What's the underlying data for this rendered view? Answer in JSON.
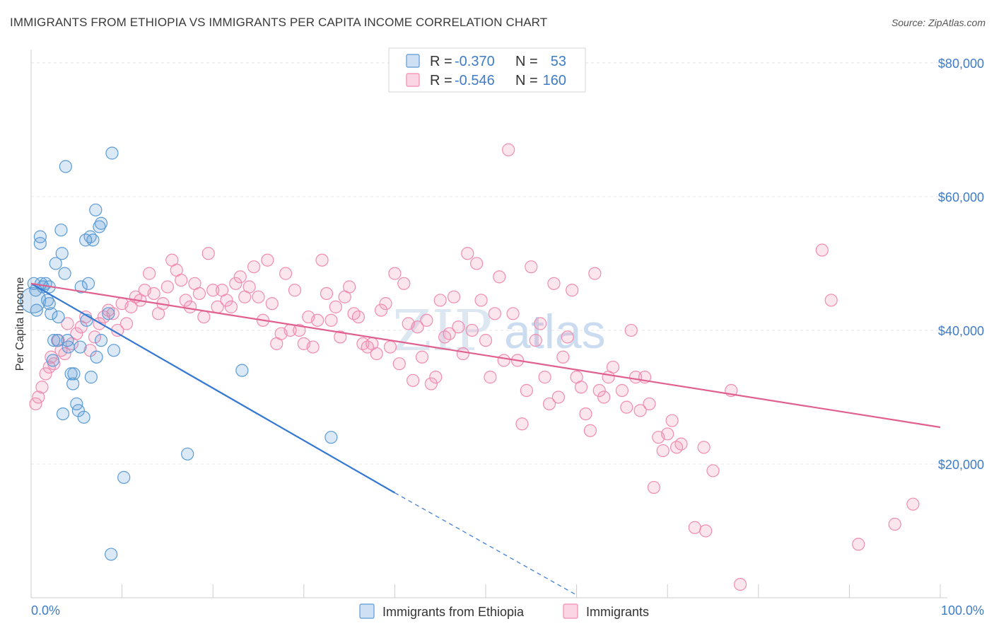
{
  "title": "IMMIGRANTS FROM ETHIOPIA VS IMMIGRANTS PER CAPITA INCOME CORRELATION CHART",
  "source": "Source: ZipAtlas.com",
  "watermark": {
    "part1": "ZIP",
    "part2": "atlas"
  },
  "legend": {
    "rows": [
      {
        "r_label": "R = ",
        "r_value": "-0.370",
        "n_label": "N = ",
        "n_value": "53",
        "color": "#5b9bd5"
      },
      {
        "r_label": "R = ",
        "r_value": "-0.546",
        "n_label": "N = ",
        "n_value": "160",
        "color": "#f08cb0"
      }
    ]
  },
  "bottom_legend": [
    {
      "label": "Immigrants from Ethiopia",
      "color": "#5b9bd5"
    },
    {
      "label": "Immigrants",
      "color": "#f08cb0"
    }
  ],
  "chart_data": {
    "type": "scatter",
    "title": "IMMIGRANTS FROM ETHIOPIA VS IMMIGRANTS PER CAPITA INCOME CORRELATION CHART",
    "xlabel": "",
    "ylabel": "Per Capita Income",
    "xlim": [
      0,
      100
    ],
    "ylim": [
      0,
      82000
    ],
    "x_tick_labels": [
      "0.0%",
      "100.0%"
    ],
    "y_ticks": [
      20000,
      40000,
      60000,
      80000
    ],
    "y_tick_labels": [
      "$20,000",
      "$40,000",
      "$60,000",
      "$80,000"
    ],
    "grid": true,
    "legend_position": "top-center",
    "series": [
      {
        "name": "Immigrants from Ethiopia",
        "color": "#5b9bd5",
        "trend": {
          "x": [
            0,
            40
          ],
          "y": [
            47000,
            15700
          ],
          "dashed_to": [
            60,
            400
          ]
        },
        "points": [
          [
            0.3,
            47000
          ],
          [
            0.5,
            46000
          ],
          [
            0.6,
            43000
          ],
          [
            1.0,
            54000
          ],
          [
            1.0,
            53000
          ],
          [
            1.1,
            47000
          ],
          [
            1.3,
            46500
          ],
          [
            1.6,
            47000
          ],
          [
            1.8,
            44500
          ],
          [
            2.0,
            46500
          ],
          [
            2.0,
            44000
          ],
          [
            2.2,
            42500
          ],
          [
            2.4,
            35500
          ],
          [
            2.5,
            38500
          ],
          [
            2.7,
            50000
          ],
          [
            2.9,
            38500
          ],
          [
            3.0,
            42000
          ],
          [
            3.3,
            55000
          ],
          [
            3.4,
            51500
          ],
          [
            3.5,
            27500
          ],
          [
            3.7,
            48500
          ],
          [
            3.8,
            64500
          ],
          [
            4.0,
            38500
          ],
          [
            4.1,
            37500
          ],
          [
            4.4,
            33500
          ],
          [
            4.6,
            32000
          ],
          [
            4.7,
            33500
          ],
          [
            5.0,
            29000
          ],
          [
            5.2,
            28000
          ],
          [
            5.4,
            37500
          ],
          [
            5.5,
            46500
          ],
          [
            5.8,
            27000
          ],
          [
            6.0,
            53500
          ],
          [
            6.1,
            41500
          ],
          [
            6.3,
            47000
          ],
          [
            6.5,
            54000
          ],
          [
            6.6,
            33000
          ],
          [
            6.8,
            53500
          ],
          [
            7.1,
            58000
          ],
          [
            7.2,
            36000
          ],
          [
            7.5,
            55500
          ],
          [
            7.7,
            56000
          ],
          [
            7.7,
            38500
          ],
          [
            8.5,
            42500
          ],
          [
            8.8,
            6500
          ],
          [
            8.9,
            66500
          ],
          [
            9.1,
            37000
          ],
          [
            10.2,
            18000
          ],
          [
            17.2,
            21500
          ],
          [
            23.2,
            34000
          ],
          [
            33.0,
            24000
          ]
        ]
      },
      {
        "name": "Immigrants",
        "color": "#f08cb0",
        "trend": {
          "x": [
            0,
            100
          ],
          "y": [
            47000,
            25500
          ]
        },
        "points": [
          [
            0.5,
            29000
          ],
          [
            0.8,
            30000
          ],
          [
            1.2,
            31500
          ],
          [
            1.6,
            33500
          ],
          [
            2.0,
            34500
          ],
          [
            2.2,
            36000
          ],
          [
            2.5,
            35000
          ],
          [
            3.0,
            38500
          ],
          [
            3.3,
            37000
          ],
          [
            3.7,
            36500
          ],
          [
            4.0,
            41000
          ],
          [
            4.5,
            38000
          ],
          [
            5.0,
            39500
          ],
          [
            5.5,
            40500
          ],
          [
            6.0,
            42000
          ],
          [
            6.5,
            37000
          ],
          [
            7.0,
            39000
          ],
          [
            7.5,
            41000
          ],
          [
            8.0,
            42000
          ],
          [
            8.5,
            43000
          ],
          [
            9.0,
            42500
          ],
          [
            9.5,
            40000
          ],
          [
            10.0,
            44000
          ],
          [
            10.5,
            41000
          ],
          [
            11.0,
            43500
          ],
          [
            11.5,
            45000
          ],
          [
            12.0,
            44500
          ],
          [
            12.5,
            46000
          ],
          [
            13.0,
            48500
          ],
          [
            13.5,
            45500
          ],
          [
            14.0,
            42500
          ],
          [
            14.5,
            44000
          ],
          [
            15.0,
            46500
          ],
          [
            15.5,
            50500
          ],
          [
            16.0,
            49000
          ],
          [
            16.5,
            47500
          ],
          [
            17.0,
            44500
          ],
          [
            17.5,
            43500
          ],
          [
            18.0,
            47000
          ],
          [
            18.5,
            45500
          ],
          [
            19.0,
            42000
          ],
          [
            19.5,
            51500
          ],
          [
            20.0,
            46000
          ],
          [
            20.5,
            43500
          ],
          [
            21.0,
            46000
          ],
          [
            21.5,
            44500
          ],
          [
            22.0,
            43500
          ],
          [
            22.5,
            47000
          ],
          [
            23.0,
            48000
          ],
          [
            23.5,
            45000
          ],
          [
            24.0,
            46500
          ],
          [
            24.5,
            49500
          ],
          [
            25.0,
            45000
          ],
          [
            25.5,
            41500
          ],
          [
            26.0,
            50500
          ],
          [
            26.5,
            44000
          ],
          [
            27.0,
            38000
          ],
          [
            27.5,
            39500
          ],
          [
            28.0,
            48500
          ],
          [
            28.5,
            40000
          ],
          [
            29.0,
            46000
          ],
          [
            29.5,
            40000
          ],
          [
            30.0,
            38000
          ],
          [
            30.5,
            42000
          ],
          [
            31.0,
            37500
          ],
          [
            31.5,
            41500
          ],
          [
            32.0,
            50500
          ],
          [
            32.5,
            45500
          ],
          [
            33.0,
            41500
          ],
          [
            33.5,
            43500
          ],
          [
            34.0,
            39000
          ],
          [
            34.5,
            45000
          ],
          [
            35.0,
            46500
          ],
          [
            35.5,
            42500
          ],
          [
            36.0,
            42000
          ],
          [
            36.5,
            38000
          ],
          [
            37.0,
            37500
          ],
          [
            37.5,
            38000
          ],
          [
            38.0,
            36500
          ],
          [
            38.5,
            43000
          ],
          [
            39.0,
            44000
          ],
          [
            39.5,
            37500
          ],
          [
            40.0,
            48500
          ],
          [
            40.5,
            35000
          ],
          [
            41.0,
            47000
          ],
          [
            41.5,
            41000
          ],
          [
            42.0,
            32500
          ],
          [
            42.5,
            40500
          ],
          [
            43.0,
            36000
          ],
          [
            43.5,
            41500
          ],
          [
            44.0,
            32000
          ],
          [
            44.5,
            33000
          ],
          [
            45.0,
            44500
          ],
          [
            45.5,
            39000
          ],
          [
            46.0,
            39500
          ],
          [
            46.5,
            45000
          ],
          [
            47.0,
            40500
          ],
          [
            47.5,
            36500
          ],
          [
            48.0,
            51500
          ],
          [
            48.5,
            40000
          ],
          [
            49.0,
            50000
          ],
          [
            49.5,
            44500
          ],
          [
            50.0,
            38500
          ],
          [
            50.5,
            33000
          ],
          [
            51.0,
            42500
          ],
          [
            51.5,
            48000
          ],
          [
            52.0,
            35500
          ],
          [
            52.5,
            67000
          ],
          [
            53.0,
            42500
          ],
          [
            53.5,
            35500
          ],
          [
            54.0,
            26000
          ],
          [
            54.5,
            31000
          ],
          [
            55.0,
            49500
          ],
          [
            55.5,
            38500
          ],
          [
            56.0,
            41000
          ],
          [
            56.5,
            33000
          ],
          [
            57.0,
            29000
          ],
          [
            57.5,
            47000
          ],
          [
            58.0,
            30000
          ],
          [
            58.5,
            36000
          ],
          [
            59.0,
            39000
          ],
          [
            59.5,
            46000
          ],
          [
            60.0,
            33000
          ],
          [
            60.5,
            31500
          ],
          [
            61.0,
            27500
          ],
          [
            61.5,
            25000
          ],
          [
            62.0,
            48500
          ],
          [
            62.5,
            31000
          ],
          [
            63.0,
            30000
          ],
          [
            63.5,
            33000
          ],
          [
            64.0,
            34500
          ],
          [
            65.0,
            31000
          ],
          [
            65.5,
            28500
          ],
          [
            66.0,
            40000
          ],
          [
            66.5,
            33000
          ],
          [
            67.0,
            28000
          ],
          [
            67.5,
            33000
          ],
          [
            68.0,
            29000
          ],
          [
            68.5,
            16500
          ],
          [
            69.0,
            24000
          ],
          [
            69.5,
            22000
          ],
          [
            70.0,
            24500
          ],
          [
            70.5,
            26500
          ],
          [
            71.0,
            22500
          ],
          [
            71.5,
            23000
          ],
          [
            73.0,
            10500
          ],
          [
            74.0,
            22500
          ],
          [
            74.2,
            10000
          ],
          [
            75.0,
            19000
          ],
          [
            77.0,
            31000
          ],
          [
            78.0,
            2000
          ],
          [
            87.0,
            52000
          ],
          [
            88.0,
            44500
          ],
          [
            91.0,
            8000
          ],
          [
            95.0,
            11000
          ],
          [
            97.0,
            14000
          ]
        ]
      }
    ]
  }
}
